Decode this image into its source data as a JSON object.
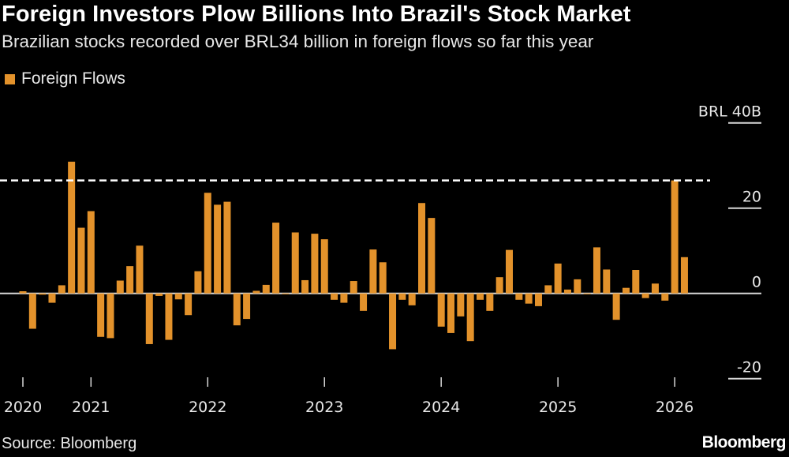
{
  "title": "Foreign Investors Plow Billions Into Brazil's Stock Market",
  "subtitle": "Brazilian stocks recorded over BRL34 billion in foreign flows so far this year",
  "source": "Source: Bloomberg",
  "logo": "Bloomberg",
  "colors": {
    "bar": "#e3922b",
    "background": "#000000",
    "reference_line": "#ffffff"
  },
  "chart_data": {
    "type": "bar",
    "title": "Foreign Investors Plow Billions Into Brazil's Stock Market",
    "subtitle": "Brazilian stocks recorded over BRL34 billion in foreign flows so far this year",
    "legend": {
      "entries": [
        "Foreign Flows"
      ],
      "placement": "top-left"
    },
    "series": [
      {
        "name": "Foreign Flows",
        "start": "2020-06",
        "frequency": "monthly",
        "values": [
          0.5,
          -8.3,
          -0.3,
          -2.2,
          1.9,
          30.9,
          15.4,
          19.3,
          -10.2,
          -10.5,
          3.0,
          6.4,
          11.2,
          -11.9,
          -0.6,
          -10.9,
          -1.4,
          -5.1,
          5.2,
          23.6,
          20.8,
          21.5,
          -7.5,
          -6.0,
          0.6,
          2.0,
          16.6,
          -0.2,
          14.3,
          3.1,
          14.0,
          12.7,
          -1.5,
          -2.2,
          2.9,
          -4.1,
          10.3,
          7.3,
          -13.1,
          -1.5,
          -2.8,
          21.2,
          17.7,
          -7.8,
          -9.3,
          -5.4,
          -11.2,
          -1.5,
          -4.1,
          3.8,
          10.2,
          -1.5,
          -2.4,
          -3.0,
          1.9,
          7.0,
          0.9,
          3.3,
          -0.2,
          10.8,
          5.6,
          -6.2,
          1.3,
          5.5,
          -1.1,
          2.3,
          -1.7,
          26.5,
          8.5
        ]
      }
    ],
    "reference_line": {
      "value": 26.5,
      "style": "dashed"
    },
    "x_ticks": [
      {
        "label": "2020",
        "month": "2020-06"
      },
      {
        "label": "2021",
        "month": "2021-01"
      },
      {
        "label": "2022",
        "month": "2022-01"
      },
      {
        "label": "2023",
        "month": "2023-01"
      },
      {
        "label": "2024",
        "month": "2024-01"
      },
      {
        "label": "2025",
        "month": "2025-01"
      },
      {
        "label": "2026",
        "month": "2026-01"
      }
    ],
    "y_ticks": [
      {
        "value": 40,
        "label": "BRL 40B"
      },
      {
        "value": 20,
        "label": "20"
      },
      {
        "value": 0,
        "label": "0"
      },
      {
        "value": -20,
        "label": "-20"
      }
    ],
    "ylim": [
      -20,
      40
    ],
    "units": "BRL billions",
    "y_axis_side": "right",
    "grid": false
  }
}
